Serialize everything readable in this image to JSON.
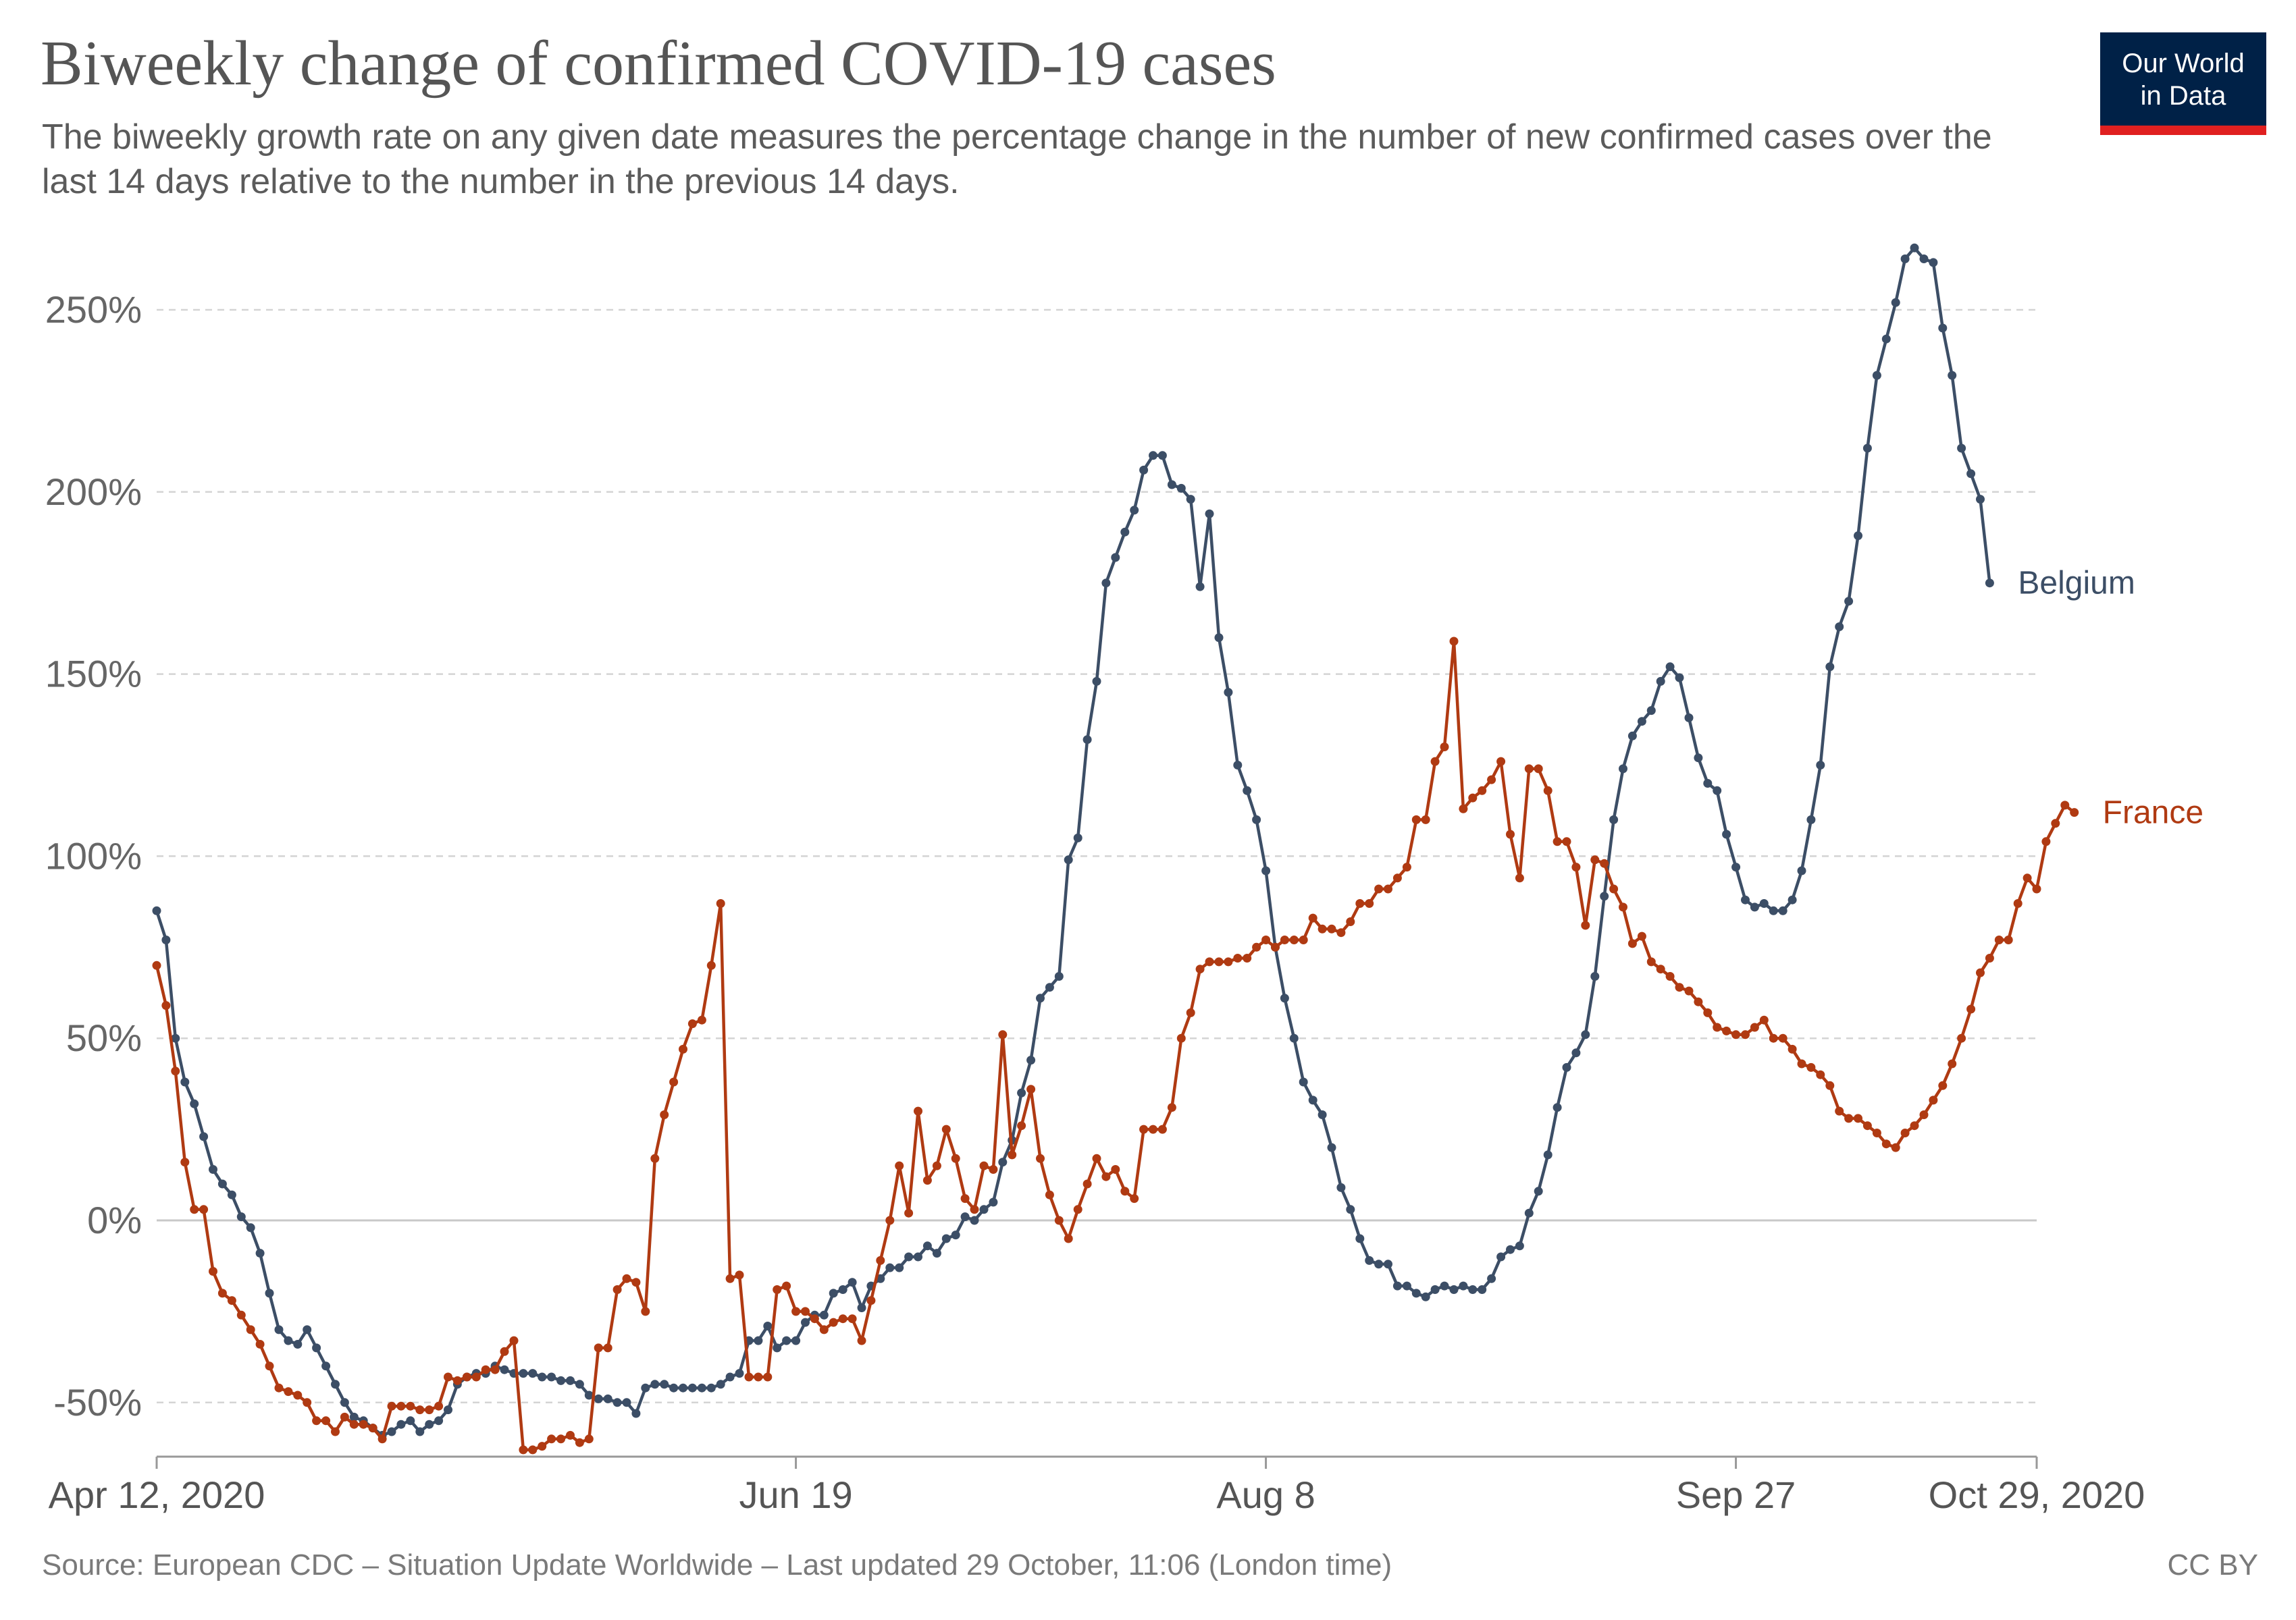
{
  "header": {
    "title": "Biweekly change of confirmed COVID-19 cases",
    "subtitle": "The biweekly growth rate on any given date measures the percentage change in the number of new confirmed cases over the last 14 days relative to the number in the previous 14 days."
  },
  "logo": {
    "line1": "Our World",
    "line2": "in Data"
  },
  "footer": {
    "source": "Source: European CDC – Situation Update Worldwide – Last updated 29 October, 11:06 (London time)",
    "license": "CC BY"
  },
  "chart_data": {
    "type": "line",
    "title": "Biweekly change of confirmed COVID-19 cases",
    "xlabel": "",
    "ylabel": "",
    "x_start": "Apr 12, 2020",
    "x_end": "Oct 29, 2020",
    "x_ticks": [
      {
        "day": 0,
        "label": "Apr 12, 2020"
      },
      {
        "day": 68,
        "label": "Jun 19"
      },
      {
        "day": 118,
        "label": "Aug 8"
      },
      {
        "day": 168,
        "label": "Sep 27"
      },
      {
        "day": 200,
        "label": "Oct 29, 2020"
      }
    ],
    "y_ticks": [
      {
        "value": -50,
        "label": "-50%"
      },
      {
        "value": 0,
        "label": "0%"
      },
      {
        "value": 50,
        "label": "50%"
      },
      {
        "value": 100,
        "label": "100%"
      },
      {
        "value": 150,
        "label": "150%"
      },
      {
        "value": 200,
        "label": "200%"
      },
      {
        "value": 250,
        "label": "250%"
      }
    ],
    "ylim": [
      -62,
      270
    ],
    "xlim": [
      0,
      200
    ],
    "grid": true,
    "series": [
      {
        "name": "Belgium",
        "color": "#3c4e66",
        "label_at_day": 200,
        "values": [
          85,
          77,
          50,
          38,
          32,
          23,
          14,
          10,
          7,
          1,
          -2,
          -9,
          -20,
          -30,
          -33,
          -34,
          -30,
          -35,
          -40,
          -45,
          -50,
          -54,
          -55,
          -57,
          -59,
          -58,
          -56,
          -55,
          -58,
          -56,
          -55,
          -52,
          -45,
          -43,
          -42,
          -42,
          -40,
          -41,
          -42,
          -42,
          -42,
          -43,
          -43,
          -44,
          -44,
          -45,
          -48,
          -49,
          -49,
          -50,
          -50,
          -53,
          -46,
          -45,
          -45,
          -46,
          -46,
          -46,
          -46,
          -46,
          -45,
          -43,
          -42,
          -33,
          -33,
          -29,
          -35,
          -33,
          -33,
          -28,
          -26,
          -26,
          -20,
          -19,
          -17,
          -24,
          -18,
          -16,
          -13,
          -13,
          -10,
          -10,
          -7,
          -9,
          -5,
          -4,
          1,
          0,
          3,
          5,
          16,
          22,
          35,
          44,
          61,
          64,
          67,
          99,
          105,
          132,
          148,
          175,
          182,
          189,
          195,
          206,
          210,
          210,
          202,
          201,
          198,
          174,
          194,
          160,
          145,
          125,
          118,
          110,
          96,
          75,
          61,
          50,
          38,
          33,
          29,
          20,
          9,
          3,
          -5,
          -11,
          -12,
          -12,
          -18,
          -18,
          -20,
          -21,
          -19,
          -18,
          -19,
          -18,
          -19,
          -19,
          -16,
          -10,
          -8,
          -7,
          2,
          8,
          18,
          31,
          42,
          46,
          51,
          67,
          89,
          110,
          124,
          133,
          137,
          140,
          148,
          152,
          149,
          138,
          127,
          120,
          118,
          106,
          97,
          88,
          86,
          87,
          85,
          85,
          88,
          96,
          110,
          125,
          152,
          163,
          170,
          188,
          212,
          232,
          242,
          252,
          264,
          267,
          264,
          263,
          245,
          232,
          212,
          205,
          198,
          175
        ]
      },
      {
        "name": "France",
        "color": "#b03a12",
        "label_at_day": 200,
        "values": [
          70,
          59,
          41,
          16,
          3,
          3,
          -14,
          -20,
          -22,
          -26,
          -30,
          -34,
          -40,
          -46,
          -47,
          -48,
          -50,
          -55,
          -55,
          -58,
          -54,
          -56,
          -56,
          -57,
          -60,
          -51,
          -51,
          -51,
          -52,
          -52,
          -51,
          -43,
          -44,
          -43,
          -43,
          -41,
          -41,
          -36,
          -33,
          -63,
          -63,
          -62,
          -60,
          -60,
          -59,
          -61,
          -60,
          -35,
          -35,
          -19,
          -16,
          -17,
          -25,
          17,
          29,
          38,
          47,
          54,
          55,
          70,
          87,
          -16,
          -15,
          -43,
          -43,
          -43,
          -19,
          -18,
          -25,
          -25,
          -27,
          -30,
          -28,
          -27,
          -27,
          -33,
          -22,
          -11,
          0,
          15,
          2,
          30,
          11,
          15,
          25,
          17,
          6,
          3,
          15,
          14,
          51,
          18,
          26,
          36,
          17,
          7,
          0,
          -5,
          3,
          10,
          17,
          12,
          14,
          8,
          6,
          25,
          25,
          25,
          31,
          50,
          57,
          69,
          71,
          71,
          71,
          72,
          72,
          75,
          77,
          75,
          77,
          77,
          77,
          83,
          80,
          80,
          79,
          82,
          87,
          87,
          91,
          91,
          94,
          97,
          110,
          110,
          126,
          130,
          159,
          113,
          116,
          118,
          121,
          126,
          106,
          94,
          124,
          124,
          118,
          104,
          104,
          97,
          81,
          99,
          98,
          91,
          86,
          76,
          78,
          71,
          69,
          67,
          64,
          63,
          60,
          57,
          53,
          52,
          51,
          51,
          53,
          55,
          50,
          50,
          47,
          43,
          42,
          40,
          37,
          30,
          28,
          28,
          26,
          24,
          21,
          20,
          24,
          26,
          29,
          33,
          37,
          43,
          50,
          58,
          68,
          72,
          77,
          77,
          87,
          94,
          91,
          104,
          109,
          114,
          112
        ]
      }
    ]
  }
}
